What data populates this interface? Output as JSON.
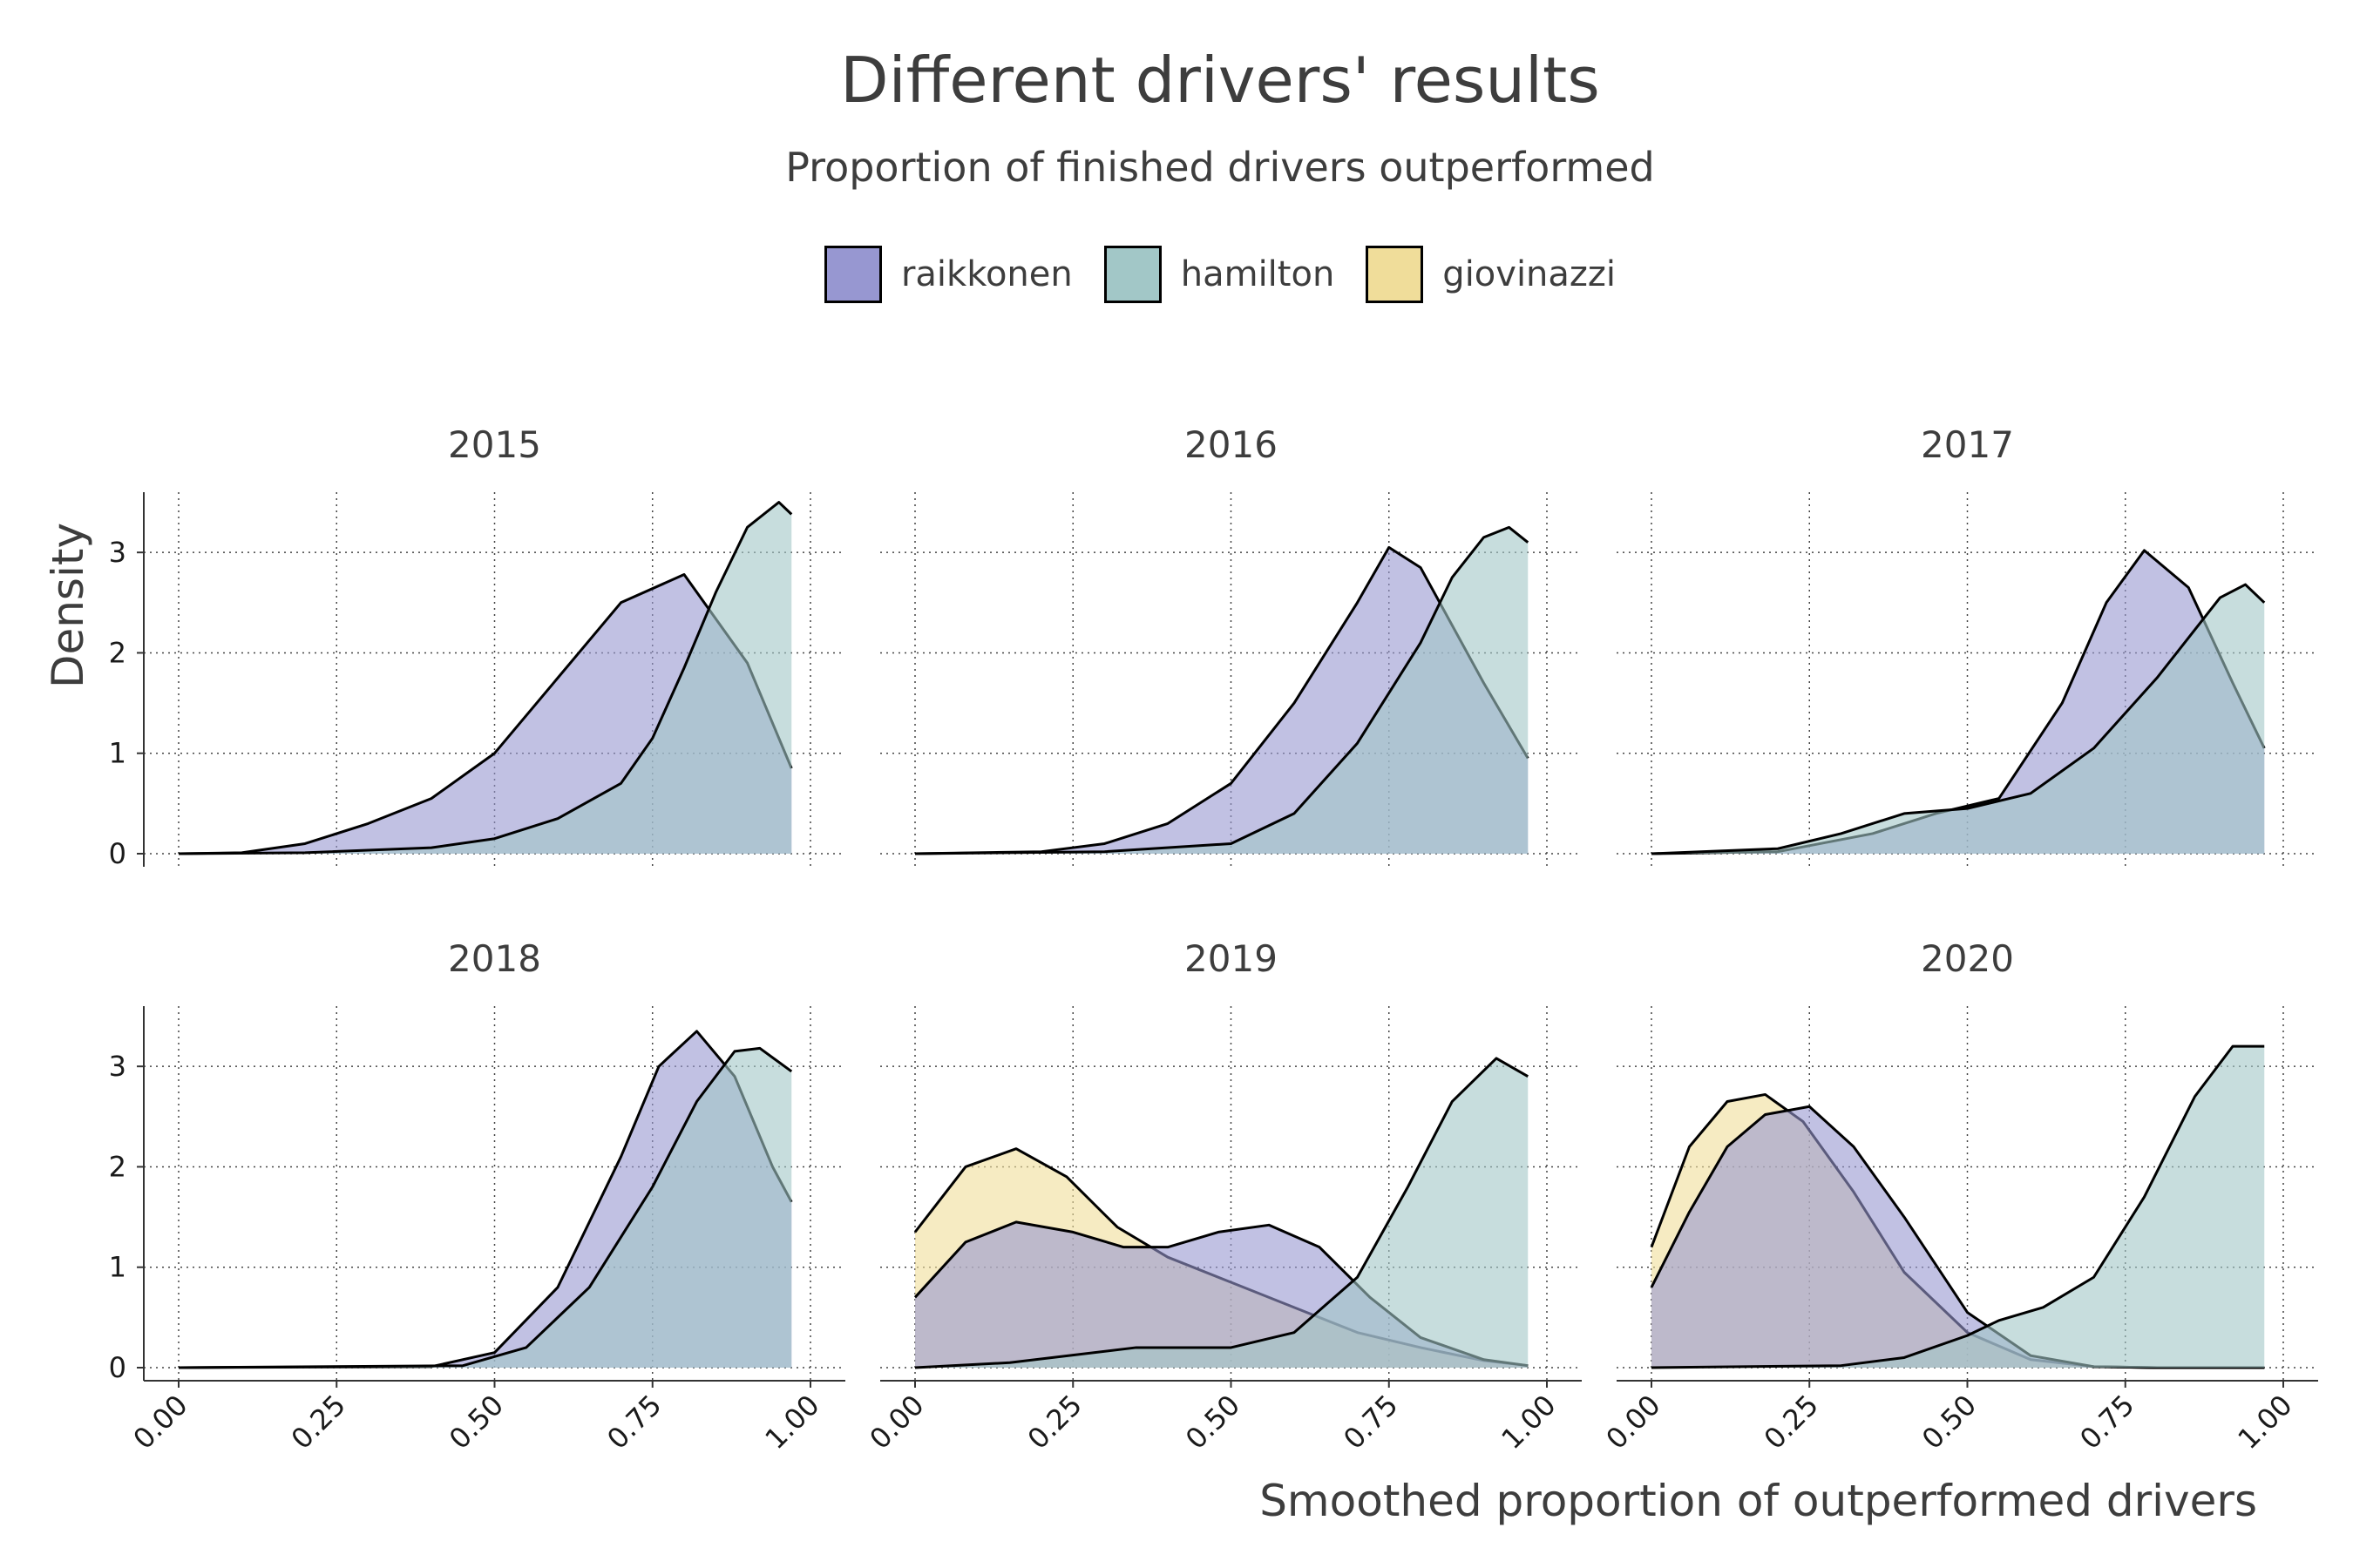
{
  "title": "Different drivers' results",
  "subtitle": "Proportion of finished drivers outperformed",
  "legend": [
    {
      "name": "raikkonen",
      "color": "#9797d1"
    },
    {
      "name": "hamilton",
      "color": "#a2c7c7"
    },
    {
      "name": "giovinazzi",
      "color": "#f0dd9a"
    }
  ],
  "chart_data": {
    "type": "area",
    "facet_by": "year",
    "xlabel": "Smoothed proportion of outperformed drivers",
    "ylabel": "Density",
    "xlim": [
      0,
      1
    ],
    "ylim": [
      0,
      3.6
    ],
    "x_ticks": [
      "0.00",
      "0.25",
      "0.50",
      "0.75",
      "1.00"
    ],
    "y_ticks": [
      "0",
      "1",
      "2",
      "3"
    ],
    "grid": "dotted",
    "legend_position": "top",
    "fill_opacity": 0.6,
    "facets": [
      {
        "year": "2015",
        "series": [
          {
            "name": "raikkonen",
            "x": [
              0,
              0.1,
              0.2,
              0.3,
              0.4,
              0.5,
              0.6,
              0.7,
              0.8,
              0.9,
              0.97
            ],
            "y": [
              0,
              0.01,
              0.1,
              0.3,
              0.55,
              1.0,
              1.75,
              2.5,
              2.78,
              1.9,
              0.85
            ]
          },
          {
            "name": "hamilton",
            "x": [
              0,
              0.2,
              0.4,
              0.5,
              0.6,
              0.7,
              0.75,
              0.8,
              0.85,
              0.9,
              0.95,
              0.97
            ],
            "y": [
              0,
              0.01,
              0.06,
              0.15,
              0.35,
              0.7,
              1.15,
              1.85,
              2.6,
              3.25,
              3.5,
              3.38
            ]
          }
        ]
      },
      {
        "year": "2016",
        "series": [
          {
            "name": "raikkonen",
            "x": [
              0,
              0.2,
              0.3,
              0.4,
              0.5,
              0.6,
              0.7,
              0.75,
              0.8,
              0.9,
              0.97
            ],
            "y": [
              0,
              0.02,
              0.1,
              0.3,
              0.7,
              1.5,
              2.5,
              3.05,
              2.85,
              1.7,
              0.95
            ]
          },
          {
            "name": "hamilton",
            "x": [
              0,
              0.3,
              0.5,
              0.6,
              0.7,
              0.8,
              0.85,
              0.9,
              0.94,
              0.97
            ],
            "y": [
              0,
              0.02,
              0.1,
              0.4,
              1.1,
              2.1,
              2.75,
              3.15,
              3.25,
              3.1
            ]
          }
        ]
      },
      {
        "year": "2017",
        "series": [
          {
            "name": "raikkonen",
            "x": [
              0,
              0.2,
              0.35,
              0.45,
              0.55,
              0.65,
              0.72,
              0.78,
              0.85,
              0.92,
              0.97
            ],
            "y": [
              0,
              0.02,
              0.2,
              0.4,
              0.55,
              1.5,
              2.5,
              3.02,
              2.65,
              1.7,
              1.05
            ]
          },
          {
            "name": "hamilton",
            "x": [
              0,
              0.2,
              0.3,
              0.4,
              0.5,
              0.6,
              0.7,
              0.8,
              0.9,
              0.94,
              0.97
            ],
            "y": [
              0,
              0.05,
              0.2,
              0.4,
              0.45,
              0.6,
              1.05,
              1.75,
              2.55,
              2.68,
              2.5
            ]
          }
        ]
      },
      {
        "year": "2018",
        "series": [
          {
            "name": "raikkonen",
            "x": [
              0,
              0.4,
              0.5,
              0.6,
              0.7,
              0.76,
              0.82,
              0.88,
              0.94,
              0.97
            ],
            "y": [
              0,
              0.01,
              0.15,
              0.8,
              2.1,
              3.0,
              3.35,
              2.9,
              2.0,
              1.65
            ]
          },
          {
            "name": "hamilton",
            "x": [
              0,
              0.45,
              0.55,
              0.65,
              0.75,
              0.82,
              0.88,
              0.92,
              0.97
            ],
            "y": [
              0,
              0.02,
              0.2,
              0.8,
              1.8,
              2.65,
              3.15,
              3.18,
              2.95
            ]
          }
        ]
      },
      {
        "year": "2019",
        "series": [
          {
            "name": "giovinazzi",
            "x": [
              0,
              0.08,
              0.16,
              0.24,
              0.32,
              0.4,
              0.5,
              0.6,
              0.7,
              0.8,
              0.9,
              0.97
            ],
            "y": [
              1.35,
              2.0,
              2.18,
              1.9,
              1.4,
              1.1,
              0.85,
              0.6,
              0.35,
              0.2,
              0.07,
              0.02
            ]
          },
          {
            "name": "raikkonen",
            "x": [
              0,
              0.08,
              0.16,
              0.25,
              0.33,
              0.4,
              0.48,
              0.56,
              0.64,
              0.72,
              0.8,
              0.9,
              0.97
            ],
            "y": [
              0.7,
              1.25,
              1.45,
              1.35,
              1.2,
              1.2,
              1.35,
              1.42,
              1.2,
              0.7,
              0.3,
              0.08,
              0.02
            ]
          },
          {
            "name": "hamilton",
            "x": [
              0,
              0.15,
              0.35,
              0.5,
              0.6,
              0.7,
              0.78,
              0.85,
              0.92,
              0.97
            ],
            "y": [
              0,
              0.05,
              0.2,
              0.2,
              0.35,
              0.9,
              1.8,
              2.65,
              3.08,
              2.9
            ]
          }
        ]
      },
      {
        "year": "2020",
        "series": [
          {
            "name": "giovinazzi",
            "x": [
              0,
              0.06,
              0.12,
              0.18,
              0.24,
              0.32,
              0.4,
              0.5,
              0.6,
              0.7,
              0.8,
              0.97
            ],
            "y": [
              1.2,
              2.2,
              2.65,
              2.72,
              2.45,
              1.75,
              0.95,
              0.35,
              0.08,
              0.01,
              0,
              0
            ]
          },
          {
            "name": "raikkonen",
            "x": [
              0,
              0.06,
              0.12,
              0.18,
              0.25,
              0.32,
              0.4,
              0.5,
              0.6,
              0.7,
              0.8,
              0.97
            ],
            "y": [
              0.8,
              1.55,
              2.2,
              2.52,
              2.6,
              2.2,
              1.5,
              0.55,
              0.12,
              0.01,
              0,
              0
            ]
          },
          {
            "name": "hamilton",
            "x": [
              0,
              0.3,
              0.4,
              0.5,
              0.55,
              0.62,
              0.7,
              0.78,
              0.86,
              0.92,
              0.97
            ],
            "y": [
              0,
              0.02,
              0.1,
              0.32,
              0.47,
              0.6,
              0.9,
              1.7,
              2.7,
              3.2,
              3.2
            ]
          }
        ]
      }
    ]
  }
}
